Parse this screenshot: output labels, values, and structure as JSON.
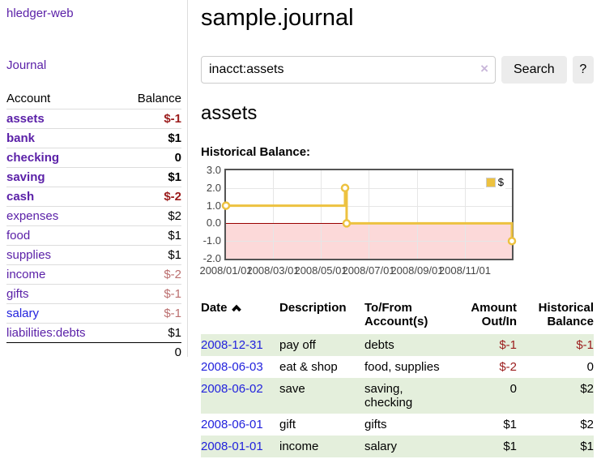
{
  "sidebar": {
    "app_title": "hledger-web",
    "journal_label": "Journal",
    "accounts": {
      "header_account": "Account",
      "header_balance": "Balance",
      "rows": [
        {
          "name": "assets",
          "balance": "$-1",
          "depth": 1,
          "bold": true,
          "balance_color": "neg-strong",
          "link_color": "purple"
        },
        {
          "name": "bank",
          "balance": "$1",
          "depth": 2,
          "bold": true,
          "balance_color": "pos",
          "link_color": "purple"
        },
        {
          "name": "checking",
          "balance": "0",
          "depth": 3,
          "bold": true,
          "balance_color": "pos",
          "link_color": "purple"
        },
        {
          "name": "saving",
          "balance": "$1",
          "depth": 3,
          "bold": true,
          "balance_color": "pos",
          "link_color": "purple"
        },
        {
          "name": "cash",
          "balance": "$-2",
          "depth": 2,
          "bold": true,
          "balance_color": "neg-strong",
          "link_color": "purple"
        },
        {
          "name": "expenses",
          "balance": "$2",
          "depth": 1,
          "bold": false,
          "balance_color": "pos",
          "link_color": "purple"
        },
        {
          "name": "food",
          "balance": "$1",
          "depth": 2,
          "bold": false,
          "balance_color": "pos",
          "link_color": "purple"
        },
        {
          "name": "supplies",
          "balance": "$1",
          "depth": 2,
          "bold": false,
          "balance_color": "pos",
          "link_color": "purple"
        },
        {
          "name": "income",
          "balance": "$-2",
          "depth": 1,
          "bold": false,
          "balance_color": "neg-muted",
          "link_color": "purple"
        },
        {
          "name": "gifts",
          "balance": "$-1",
          "depth": 2,
          "bold": false,
          "balance_color": "neg-muted",
          "link_color": "purple"
        },
        {
          "name": "salary",
          "balance": "$-1",
          "depth": 2,
          "bold": false,
          "balance_color": "neg-muted",
          "link_color": "blue"
        },
        {
          "name": "liabilities:debts",
          "balance": "$1",
          "depth": 1,
          "bold": false,
          "balance_color": "pos",
          "link_color": "purple"
        }
      ],
      "total": "0"
    }
  },
  "main": {
    "title": "sample.journal",
    "search": {
      "value": "inacct:assets",
      "clear_icon": "×",
      "button_label": "Search",
      "help_label": "?"
    },
    "account_heading": "assets"
  },
  "chart_data": {
    "type": "line",
    "title": "Historical Balance:",
    "step": true,
    "xlim": [
      "2008-01-01",
      "2008-12-31"
    ],
    "ylim": [
      -2,
      3
    ],
    "x_ticks": [
      {
        "label": "2008/01/01",
        "date": "2008-01-01"
      },
      {
        "label": "2008/03/01",
        "date": "2008-03-01"
      },
      {
        "label": "2008/05/01",
        "date": "2008-05-01"
      },
      {
        "label": "2008/07/01",
        "date": "2008-07-01"
      },
      {
        "label": "2008/09/01",
        "date": "2008-09-01"
      },
      {
        "label": "2008/11/01",
        "date": "2008-11-01"
      }
    ],
    "y_ticks": [
      "3.0",
      "2.0",
      "1.0",
      "0.0",
      "-1.0",
      "-2.0"
    ],
    "series": [
      {
        "name": "$",
        "color": "#edc240",
        "points": [
          [
            "2008-01-01",
            1
          ],
          [
            "2008-06-01",
            2
          ],
          [
            "2008-06-03",
            0
          ],
          [
            "2008-12-31",
            -1
          ]
        ]
      }
    ],
    "legend": {
      "label": "$",
      "position": "top-right"
    },
    "colors": {
      "negative_region": "#fcd9d9",
      "zero_line": "#990000",
      "plot_border": "#545454",
      "grid": "#e6e6e6"
    }
  },
  "transactions": {
    "headers": {
      "date": "Date",
      "description": "Description",
      "account": "To/From Account(s)",
      "amount": "Amount Out/In",
      "balance": "Historical Balance"
    },
    "rows": [
      {
        "date": "2008-12-31",
        "description": "pay off",
        "account": "debts",
        "amount": "$-1",
        "balance": "$-1",
        "amount_neg": true,
        "balance_neg": true,
        "highlight": true
      },
      {
        "date": "2008-06-03",
        "description": "eat & shop",
        "account": "food, supplies",
        "amount": "$-2",
        "balance": "0",
        "amount_neg": true,
        "balance_neg": false,
        "highlight": false
      },
      {
        "date": "2008-06-02",
        "description": "save",
        "account": "saving, checking",
        "amount": "0",
        "balance": "$2",
        "amount_neg": false,
        "balance_neg": false,
        "highlight": true
      },
      {
        "date": "2008-06-01",
        "description": "gift",
        "account": "gifts",
        "amount": "$1",
        "balance": "$2",
        "amount_neg": false,
        "balance_neg": false,
        "highlight": false
      },
      {
        "date": "2008-01-01",
        "description": "income",
        "account": "salary",
        "amount": "$1",
        "balance": "$1",
        "amount_neg": false,
        "balance_neg": false,
        "highlight": true
      }
    ]
  }
}
